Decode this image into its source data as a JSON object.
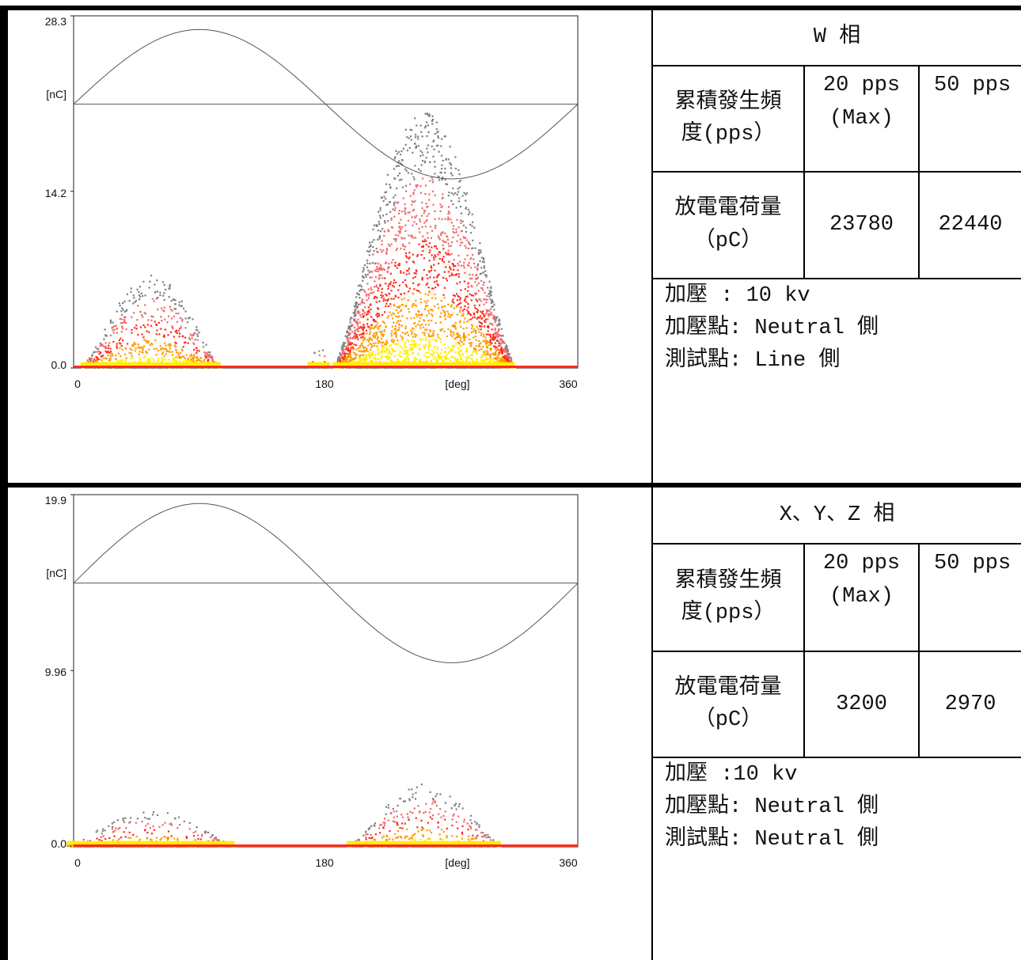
{
  "panels": [
    {
      "chart": {
        "y_max_label": "28.3",
        "y_mid_label": "14.2",
        "y_zero_label": "0.0",
        "y_unit": "[nC]",
        "x_ticks": [
          "0",
          "180",
          "360"
        ],
        "x_unit": "[deg]"
      },
      "table": {
        "phase_title": "W 相",
        "row1_label_line1": "累積發生頻",
        "row1_label_line2": "度(pps）",
        "col1_line1": "20 pps",
        "col1_line2": "(Max)",
        "col2_header": "50 pps",
        "row2_label_line1": "放電電荷量",
        "row2_label_line2": "（pC）",
        "charge_20": "23780",
        "charge_50": "22440",
        "info_line1": "加壓 : 10 kv",
        "info_line2": "加壓點: Neutral 側",
        "info_line3": "測試點: Line 側"
      }
    },
    {
      "chart": {
        "y_max_label": "19.9",
        "y_mid_label": "9.96",
        "y_zero_label": "0.0",
        "y_unit": "[nC]",
        "x_ticks": [
          "0",
          "180",
          "360"
        ],
        "x_unit": "[deg]"
      },
      "table": {
        "phase_title": "X、Y、Z 相",
        "row1_label_line1": "累積發生頻",
        "row1_label_line2": "度(pps）",
        "col1_line1": "20 pps",
        "col1_line2": "(Max)",
        "col2_header": "50 pps",
        "row2_label_line1": "放電電荷量",
        "row2_label_line2": "（pC）",
        "charge_20": "3200",
        "charge_50": "2970",
        "info_line1": "加壓 :10 kv",
        "info_line2": "加壓點: Neutral 側",
        "info_line3": "測試點: Neutral 側"
      }
    }
  ],
  "chart_data": [
    {
      "type": "scatter",
      "title": "",
      "xlabel": "[deg]",
      "ylabel": "[nC]",
      "xlim": [
        0,
        360
      ],
      "ylim": [
        0,
        28.3
      ],
      "y_ticks": [
        0.0,
        14.2,
        28.3
      ],
      "x_ticks": [
        0,
        180,
        360
      ],
      "reference_sine": {
        "center": 21.2,
        "amplitude": 6.0
      },
      "clusters": [
        {
          "x_center": 55,
          "x_halfwidth": 50,
          "y_peak": 7.5
        },
        {
          "x_center": 175,
          "x_halfwidth": 8,
          "y_peak": 1.8
        },
        {
          "x_center": 250,
          "x_halfwidth": 65,
          "y_peak": 20.5
        }
      ],
      "colors": [
        "#808080",
        "#f26a6a",
        "#ff2a1a",
        "#ff9a00",
        "#ffee00"
      ]
    },
    {
      "type": "scatter",
      "title": "",
      "xlabel": "[deg]",
      "ylabel": "[nC]",
      "xlim": [
        0,
        360
      ],
      "ylim": [
        0,
        19.9
      ],
      "y_ticks": [
        0.0,
        9.96,
        19.9
      ],
      "x_ticks": [
        0,
        180,
        360
      ],
      "reference_sine": {
        "center": 14.9,
        "amplitude": 4.5
      },
      "clusters": [
        {
          "x_center": 55,
          "x_halfwidth": 60,
          "y_peak": 2.0
        },
        {
          "x_center": 250,
          "x_halfwidth": 55,
          "y_peak": 3.5
        }
      ],
      "colors": [
        "#808080",
        "#f26a6a",
        "#ff2a1a",
        "#ff9a00",
        "#ffee00"
      ]
    }
  ]
}
